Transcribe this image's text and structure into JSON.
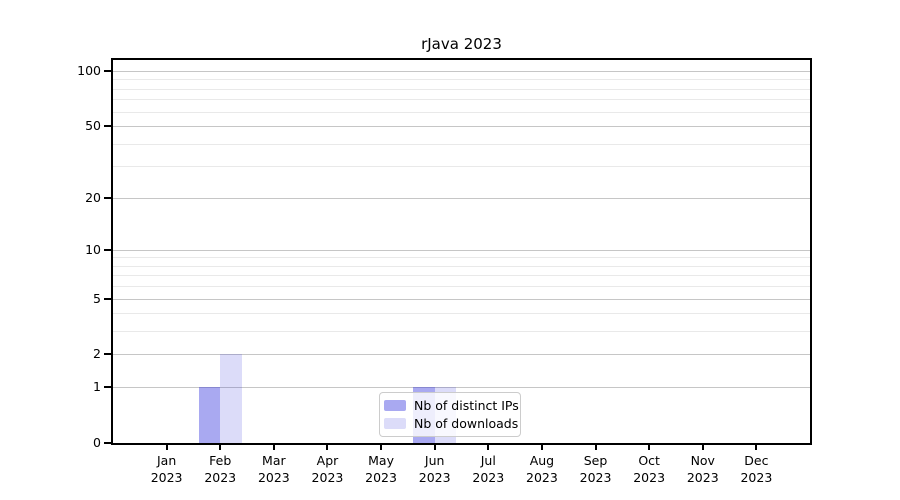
{
  "title": "rJava 2023",
  "chart_data": {
    "type": "bar",
    "title": "rJava 2023",
    "categories": [
      "Jan",
      "Feb",
      "Mar",
      "Apr",
      "May",
      "Jun",
      "Jul",
      "Aug",
      "Sep",
      "Oct",
      "Nov",
      "Dec"
    ],
    "year_label": "2023",
    "series": [
      {
        "name": "Nb of distinct IPs",
        "color": "rgba(40,40,220,0.40)",
        "values": [
          0,
          1,
          0,
          0,
          0,
          1,
          0,
          0,
          0,
          0,
          0,
          0
        ]
      },
      {
        "name": "Nb of downloads",
        "color": "rgba(40,40,220,0.16)",
        "values": [
          0,
          2,
          0,
          0,
          0,
          1,
          0,
          0,
          0,
          0,
          0,
          0
        ]
      }
    ],
    "xlabel": "",
    "ylabel": "",
    "y_scale": "log1p",
    "y_major_ticks": [
      0,
      1,
      2,
      5,
      10,
      20,
      50,
      100
    ],
    "y_minor_gridlines": [
      3,
      4,
      6,
      7,
      8,
      9,
      30,
      40,
      60,
      70,
      80,
      90
    ],
    "ylim": [
      0,
      115
    ],
    "grid": "horizontal",
    "legend_position": "bottom-center",
    "colors": {
      "major_grid": "#c6c6c6",
      "minor_grid": "#e9e9e9",
      "spine": "#000000",
      "background": "#ffffff"
    }
  }
}
